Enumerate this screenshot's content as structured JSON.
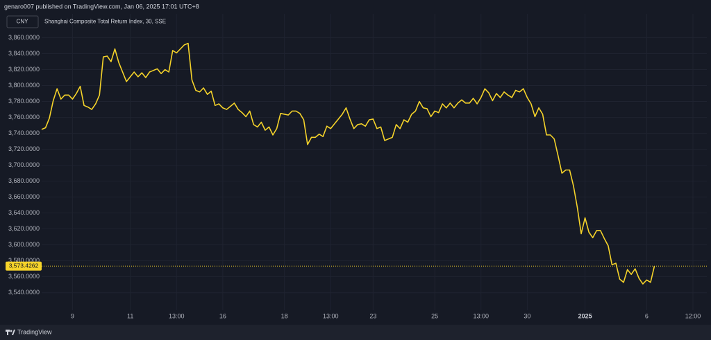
{
  "header": "genaro007 published on TradingView.com, Jan 06, 2025 17:01 UTC+8",
  "currency": "CNY",
  "footer": "TradingView",
  "chart_data": {
    "type": "line",
    "title": "Shanghai Composite Total Return Index, 30, SSE",
    "color": "#f5d32a",
    "grid": true,
    "ylim": [
      3518,
      3890
    ],
    "yticks": [
      {
        "value": 3540,
        "label": "3,540.0000"
      },
      {
        "value": 3560,
        "label": "3,560.0000"
      },
      {
        "value": 3580,
        "label": "3,580.0000"
      },
      {
        "value": 3600,
        "label": "3,600.0000"
      },
      {
        "value": 3620,
        "label": "3,620.0000"
      },
      {
        "value": 3640,
        "label": "3,640.0000"
      },
      {
        "value": 3660,
        "label": "3,660.0000"
      },
      {
        "value": 3680,
        "label": "3,680.0000"
      },
      {
        "value": 3700,
        "label": "3,700.0000"
      },
      {
        "value": 3720,
        "label": "3,720.0000"
      },
      {
        "value": 3740,
        "label": "3,740.0000"
      },
      {
        "value": 3760,
        "label": "3,760.0000"
      },
      {
        "value": 3780,
        "label": "3,780.0000"
      },
      {
        "value": 3800,
        "label": "3,800.0000"
      },
      {
        "value": 3820,
        "label": "3,820.0000"
      },
      {
        "value": 3840,
        "label": "3,840.0000"
      },
      {
        "value": 3860,
        "label": "3,860.0000"
      }
    ],
    "last_price_label": "3,573.4262",
    "categories": [
      null,
      null,
      null,
      null,
      null,
      null,
      null,
      null,
      "9",
      null,
      null,
      null,
      null,
      null,
      null,
      null,
      null,
      null,
      null,
      null,
      null,
      null,
      null,
      "11",
      null,
      null,
      null,
      null,
      null,
      null,
      null,
      null,
      null,
      null,
      null,
      "13:00",
      null,
      null,
      null,
      null,
      null,
      null,
      null,
      null,
      null,
      null,
      null,
      "16",
      null,
      null,
      null,
      null,
      null,
      null,
      null,
      null,
      null,
      null,
      null,
      null,
      null,
      null,
      null,
      "18",
      null,
      null,
      null,
      null,
      null,
      null,
      null,
      null,
      null,
      null,
      null,
      "13:00",
      null,
      null,
      null,
      null,
      null,
      null,
      null,
      null,
      null,
      null,
      "23",
      null,
      null,
      null,
      null,
      null,
      null,
      null,
      null,
      null,
      null,
      null,
      null,
      null,
      null,
      null,
      "25",
      null,
      null,
      null,
      null,
      null,
      null,
      null,
      null,
      null,
      null,
      null,
      "13:00",
      null,
      null,
      null,
      null,
      null,
      null,
      null,
      null,
      null,
      null,
      null,
      "30",
      null,
      null,
      null,
      null,
      null,
      null,
      null,
      null,
      null,
      null,
      null,
      null,
      null,
      null,
      "2025",
      null,
      null,
      null,
      null,
      null,
      null,
      null,
      null,
      null,
      null,
      null,
      null,
      null,
      null,
      null,
      "6",
      null,
      null,
      null,
      null,
      null,
      null,
      null,
      null,
      null,
      null,
      null,
      "12:00"
    ],
    "values": [
      3745,
      3747,
      3759,
      3781,
      3796,
      3783,
      3788,
      3788,
      3783,
      3790,
      3799,
      3775,
      3773,
      3770,
      3777,
      3788,
      3836,
      3837,
      3830,
      3846,
      3829,
      3817,
      3805,
      3811,
      3817,
      3811,
      3816,
      3810,
      3817,
      3819,
      3821,
      3815,
      3820,
      3817,
      3844,
      3841,
      3846,
      3851,
      3853,
      3807,
      3794,
      3792,
      3797,
      3789,
      3793,
      3775,
      3777,
      3772,
      3770,
      3774,
      3778,
      3770,
      3766,
      3761,
      3768,
      3751,
      3748,
      3754,
      3744,
      3748,
      3738,
      3746,
      3765,
      3764,
      3763,
      3768,
      3768,
      3765,
      3757,
      3726,
      3735,
      3735,
      3739,
      3736,
      3749,
      3746,
      3752,
      3758,
      3764,
      3772,
      3758,
      3746,
      3751,
      3752,
      3749,
      3757,
      3758,
      3746,
      3748,
      3731,
      3733,
      3735,
      3751,
      3746,
      3757,
      3754,
      3764,
      3768,
      3780,
      3772,
      3771,
      3761,
      3768,
      3766,
      3777,
      3772,
      3778,
      3772,
      3778,
      3782,
      3778,
      3778,
      3784,
      3777,
      3785,
      3796,
      3791,
      3781,
      3790,
      3785,
      3792,
      3788,
      3785,
      3794,
      3792,
      3796,
      3785,
      3777,
      3761,
      3772,
      3764,
      3738,
      3738,
      3733,
      3712,
      3690,
      3694,
      3694,
      3674,
      3647,
      3614,
      3634,
      3616,
      3609,
      3618,
      3618,
      3608,
      3599,
      3575,
      3577,
      3557,
      3553,
      3569,
      3563,
      3570,
      3558,
      3551,
      3556,
      3553,
      3573.4262,
      null,
      null,
      null,
      null,
      null,
      null,
      null,
      null,
      null,
      null
    ]
  }
}
